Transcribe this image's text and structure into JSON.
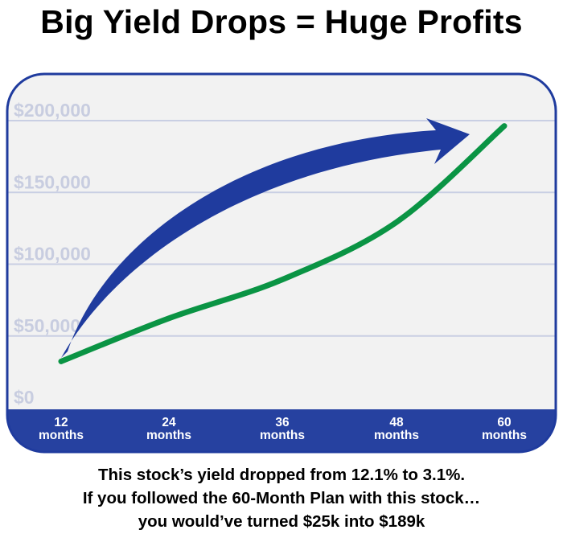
{
  "title": "Big Yield Drops = Huge Profits",
  "chart_data": {
    "type": "line",
    "title": "Big Yield Drops = Huge Profits",
    "y_tick_labels": [
      "$200,000",
      "$150,000",
      "$100,000",
      "$50,000",
      "$0"
    ],
    "x_tick_labels": [
      [
        "12",
        "months"
      ],
      [
        "24",
        "months"
      ],
      [
        "36",
        "months"
      ],
      [
        "48",
        "months"
      ],
      [
        "60",
        "months"
      ]
    ],
    "ylim": [
      0,
      200000
    ],
    "grid": true,
    "series": [
      {
        "values": [
          [
            12,
            25000
          ],
          [
            24,
            55000
          ],
          [
            36,
            82000
          ],
          [
            48,
            122000
          ],
          [
            60,
            189000
          ]
        ]
      }
    ],
    "colors": {
      "line": "#0a9444",
      "arrow": "#1f3b9e",
      "xaxis_band": "#2641a0",
      "plot_border": "#1f3b9e",
      "plot_bg": "#f2f2f2",
      "tick_text": "#c8cde0"
    },
    "annotation_icon": "upward-curved-arrow"
  },
  "captions": [
    "This stock’s yield dropped from 12.1% to 3.1%.",
    "If you followed the 60-Month Plan with this stock…",
    "you would’ve turned $25k into $189k"
  ]
}
